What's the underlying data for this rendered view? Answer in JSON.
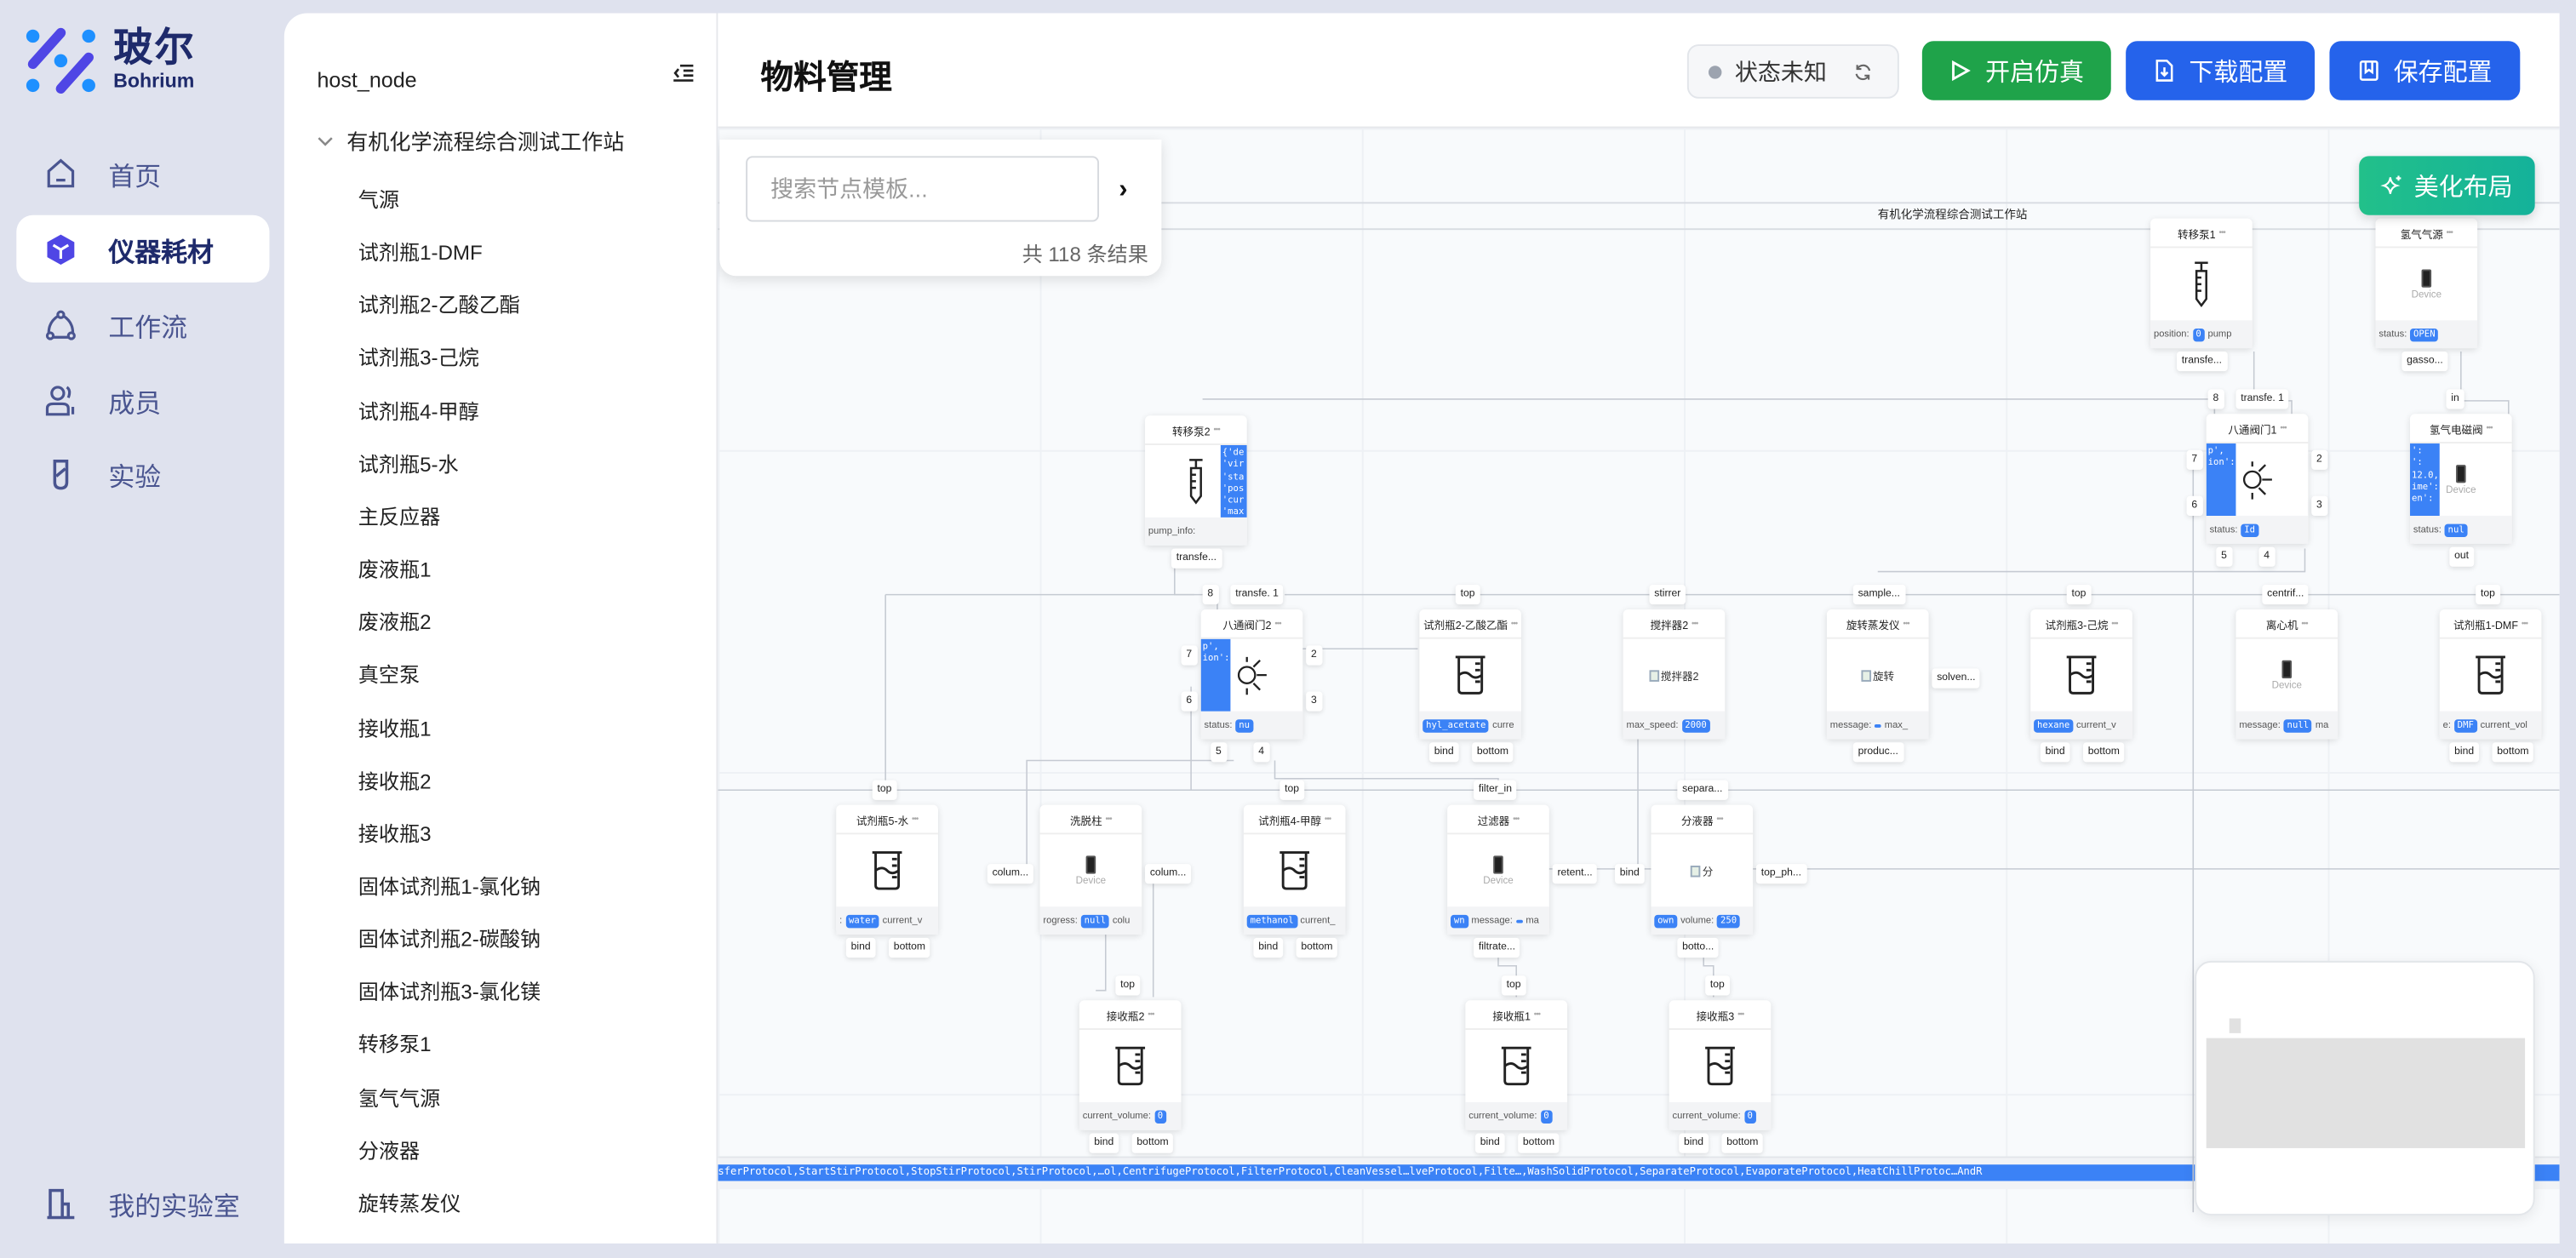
{
  "brand": {
    "name_cn": "玻尔",
    "name_en": "Bohrium"
  },
  "nav": {
    "items": [
      {
        "label": "首页",
        "icon": "home-icon"
      },
      {
        "label": "仪器耗材",
        "icon": "cube-icon",
        "active": true
      },
      {
        "label": "工作流",
        "icon": "workflow-icon"
      },
      {
        "label": "成员",
        "icon": "users-icon"
      },
      {
        "label": "实验",
        "icon": "test-tube-icon"
      }
    ],
    "bottom": {
      "label": "我的实验室",
      "icon": "building-icon"
    }
  },
  "tree": {
    "root": "host_node",
    "group": "有机化学流程综合测试工作站",
    "items": [
      "气源",
      "试剂瓶1-DMF",
      "试剂瓶2-乙酸乙酯",
      "试剂瓶3-己烷",
      "试剂瓶4-甲醇",
      "试剂瓶5-水",
      "主反应器",
      "废液瓶1",
      "废液瓶2",
      "真空泵",
      "接收瓶1",
      "接收瓶2",
      "接收瓶3",
      "固体试剂瓶1-氯化钠",
      "固体试剂瓶2-碳酸钠",
      "固体试剂瓶3-氯化镁",
      "转移泵1",
      "氢气气源",
      "分液器",
      "旋转蒸发仪"
    ]
  },
  "header": {
    "title": "物料管理",
    "status": "状态未知",
    "start_sim": "开启仿真",
    "download": "下载配置",
    "save": "保存配置",
    "colors": {
      "green": "#16a34a",
      "blue": "#2563eb",
      "teal": "#14b29a"
    }
  },
  "search": {
    "placeholder": "搜索节点模板...",
    "count": "共 118 条结果"
  },
  "canvas": {
    "beautify": "美化布局",
    "group_title": "有机化学流程综合测试工作站",
    "protocols": "sferProtocol,StartStirProtocol,StopStirProtocol,StirProtocol,…ol,CentrifugeProtocol,FilterProtocol,CleanVessel…lveProtocol,Filte…,WashSolidProtocol,SeparateProtocol,EvaporateProtocol,HeatChillProtoc…AndR"
  },
  "nodes": [
    {
      "title": "转移泵1",
      "icon": "syringe",
      "foot": [
        {
          "k": "position:",
          "v": "0"
        },
        {
          "k": "pump"
        }
      ],
      "ports": [
        {
          "t": "transfe...",
          "side": "bottom"
        }
      ]
    },
    {
      "title": "氢气气源",
      "icon": "device",
      "device": "Device",
      "foot": [
        {
          "k": "status:",
          "v": "OPEN"
        }
      ],
      "ports": [
        {
          "t": "gasso...",
          "side": "bottom"
        }
      ]
    },
    {
      "title": "转移泵2",
      "icon": "syringe",
      "panel_right": [
        "{'de",
        "'vir",
        "'sta",
        "'pos",
        "'cur",
        "'max",
        "'max"
      ],
      "foot": [
        {
          "k": "pump_info:"
        }
      ],
      "ports": [
        {
          "t": "transfe...",
          "side": "bottom"
        }
      ]
    },
    {
      "title": "八通阀门1",
      "icon": "sun",
      "panel": [
        "p',",
        "ion':",
        "",
        "",
        "",
        ""
      ],
      "foot": [
        {
          "k": "status:",
          "v": "Id"
        }
      ],
      "ports": [
        {
          "t": "8",
          "side": "top"
        },
        {
          "t": "transfe. 1",
          "side": "top"
        },
        {
          "t": "7",
          "side": "left"
        },
        {
          "t": "6",
          "side": "left"
        },
        {
          "t": "2",
          "side": "right"
        },
        {
          "t": "3",
          "side": "right"
        },
        {
          "t": "5",
          "side": "bottom"
        },
        {
          "t": "4",
          "side": "bottom"
        }
      ]
    },
    {
      "title": "氢气电磁阀",
      "icon": "device",
      "device": "Device",
      "panel": [
        "':",
        "':",
        "",
        "12.0,",
        "ime':",
        "en':",
        "",
        ""
      ],
      "foot": [
        {
          "k": "status:",
          "v": "nul"
        }
      ],
      "ports": [
        {
          "t": "in",
          "side": "top"
        },
        {
          "t": "out",
          "side": "bottom"
        }
      ]
    },
    {
      "title": "八通阀门2",
      "icon": "sun",
      "panel": [
        "p',",
        "ion':",
        "",
        "",
        "",
        ""
      ],
      "foot": [
        {
          "k": "status:",
          "v": "nu"
        }
      ],
      "ports": [
        {
          "t": "8",
          "side": "top"
        },
        {
          "t": "transfe. 1",
          "side": "top"
        },
        {
          "t": "7",
          "side": "left"
        },
        {
          "t": "6",
          "side": "left"
        },
        {
          "t": "2",
          "side": "right"
        },
        {
          "t": "3",
          "side": "right"
        },
        {
          "t": "5",
          "side": "bottom"
        },
        {
          "t": "4",
          "side": "bottom"
        }
      ]
    },
    {
      "title": "试剂瓶2-乙酸乙酯",
      "icon": "beaker",
      "foot": [
        {
          "v": "hyl_acetate"
        },
        {
          "k": "curre"
        }
      ],
      "ports": [
        {
          "t": "top",
          "side": "top"
        },
        {
          "t": "bind",
          "side": "bottom"
        },
        {
          "t": "bottom",
          "side": "bottom"
        }
      ]
    },
    {
      "title": "搅拌器2",
      "icon": "broken",
      "alt": "搅拌器2",
      "foot": [
        {
          "k": "max_speed:",
          "v": "2000"
        }
      ],
      "ports": [
        {
          "t": "stirrer",
          "side": "top"
        }
      ]
    },
    {
      "title": "旋转蒸发仪",
      "icon": "broken",
      "alt": "旋转",
      "foot": [
        {
          "k": "message:",
          "v": " "
        },
        {
          "k": "max_"
        }
      ],
      "ports": [
        {
          "t": "sample...",
          "side": "top"
        },
        {
          "t": "solven...",
          "side": "right"
        },
        {
          "t": "produc...",
          "side": "bottom"
        }
      ]
    },
    {
      "title": "试剂瓶3-己烷",
      "icon": "beaker",
      "foot": [
        {
          "v": "hexane"
        },
        {
          "k": "current_v"
        }
      ],
      "ports": [
        {
          "t": "top",
          "side": "top"
        },
        {
          "t": "bind",
          "side": "bottom"
        },
        {
          "t": "bottom",
          "side": "bottom"
        }
      ]
    },
    {
      "title": "离心机",
      "icon": "device",
      "device": "Device",
      "foot": [
        {
          "k": "message:",
          "v": "null"
        },
        {
          "k": "ma"
        }
      ],
      "ports": [
        {
          "t": "centrif...",
          "side": "top"
        }
      ]
    },
    {
      "title": "试剂瓶1-DMF",
      "icon": "beaker",
      "foot": [
        {
          "k": "e:",
          "v": "DMF"
        },
        {
          "k": "current_vol"
        }
      ],
      "ports": [
        {
          "t": "top",
          "side": "top"
        },
        {
          "t": "bind",
          "side": "bottom"
        },
        {
          "t": "bottom",
          "side": "bottom"
        }
      ]
    },
    {
      "title": "试剂瓶5-水",
      "icon": "beaker",
      "foot": [
        {
          "k": ":",
          "v": "water"
        },
        {
          "k": "current_v"
        }
      ],
      "ports": [
        {
          "t": "top",
          "side": "top"
        },
        {
          "t": "bind",
          "side": "bottom"
        },
        {
          "t": "bottom",
          "side": "bottom"
        }
      ]
    },
    {
      "title": "洗脱柱",
      "icon": "device",
      "device": "Device",
      "foot": [
        {
          "k": "rogress:",
          "v": "null"
        },
        {
          "k": "colu"
        }
      ],
      "ports": [
        {
          "t": "colum...",
          "side": "left"
        },
        {
          "t": "colum...",
          "side": "right"
        }
      ]
    },
    {
      "title": "试剂瓶4-甲醇",
      "icon": "beaker",
      "foot": [
        {
          "v": "methanol"
        },
        {
          "k": "current_"
        }
      ],
      "ports": [
        {
          "t": "top",
          "side": "top"
        },
        {
          "t": "bind",
          "side": "bottom"
        },
        {
          "t": "bottom",
          "side": "bottom"
        }
      ]
    },
    {
      "title": "过滤器",
      "icon": "device",
      "device": "Device",
      "foot": [
        {
          "v": "wn"
        },
        {
          "k": "message:",
          "v": " "
        },
        {
          "k": "ma"
        }
      ],
      "ports": [
        {
          "t": "filter_in",
          "side": "top"
        },
        {
          "t": "retent...",
          "side": "right"
        },
        {
          "t": "filtrate...",
          "side": "bottom"
        }
      ]
    },
    {
      "title": "分液器",
      "icon": "broken",
      "alt": "分",
      "foot": [
        {
          "v": "own"
        },
        {
          "k": "volume:",
          "v": "250"
        }
      ],
      "ports": [
        {
          "t": "separa...",
          "side": "top"
        },
        {
          "t": "bind",
          "side": "left"
        },
        {
          "t": "top_ph...",
          "side": "right"
        },
        {
          "t": "botto...",
          "side": "bottom"
        }
      ]
    },
    {
      "title": "接收瓶2",
      "icon": "beaker",
      "foot": [
        {
          "k": "current_volume:",
          "v": "0"
        }
      ],
      "ports": [
        {
          "t": "top",
          "side": "top"
        },
        {
          "t": "bind",
          "side": "bottom"
        },
        {
          "t": "bottom",
          "side": "bottom"
        }
      ]
    },
    {
      "title": "接收瓶1",
      "icon": "beaker",
      "foot": [
        {
          "k": "current_volume:",
          "v": "0"
        }
      ],
      "ports": [
        {
          "t": "top",
          "side": "top"
        },
        {
          "t": "bind",
          "side": "bottom"
        },
        {
          "t": "bottom",
          "side": "bottom"
        }
      ]
    },
    {
      "title": "接收瓶3",
      "icon": "beaker",
      "foot": [
        {
          "k": "current_volume:",
          "v": "0"
        }
      ],
      "ports": [
        {
          "t": "top",
          "side": "top"
        },
        {
          "t": "bind",
          "side": "bottom"
        },
        {
          "t": "bottom",
          "side": "bottom"
        }
      ]
    }
  ]
}
